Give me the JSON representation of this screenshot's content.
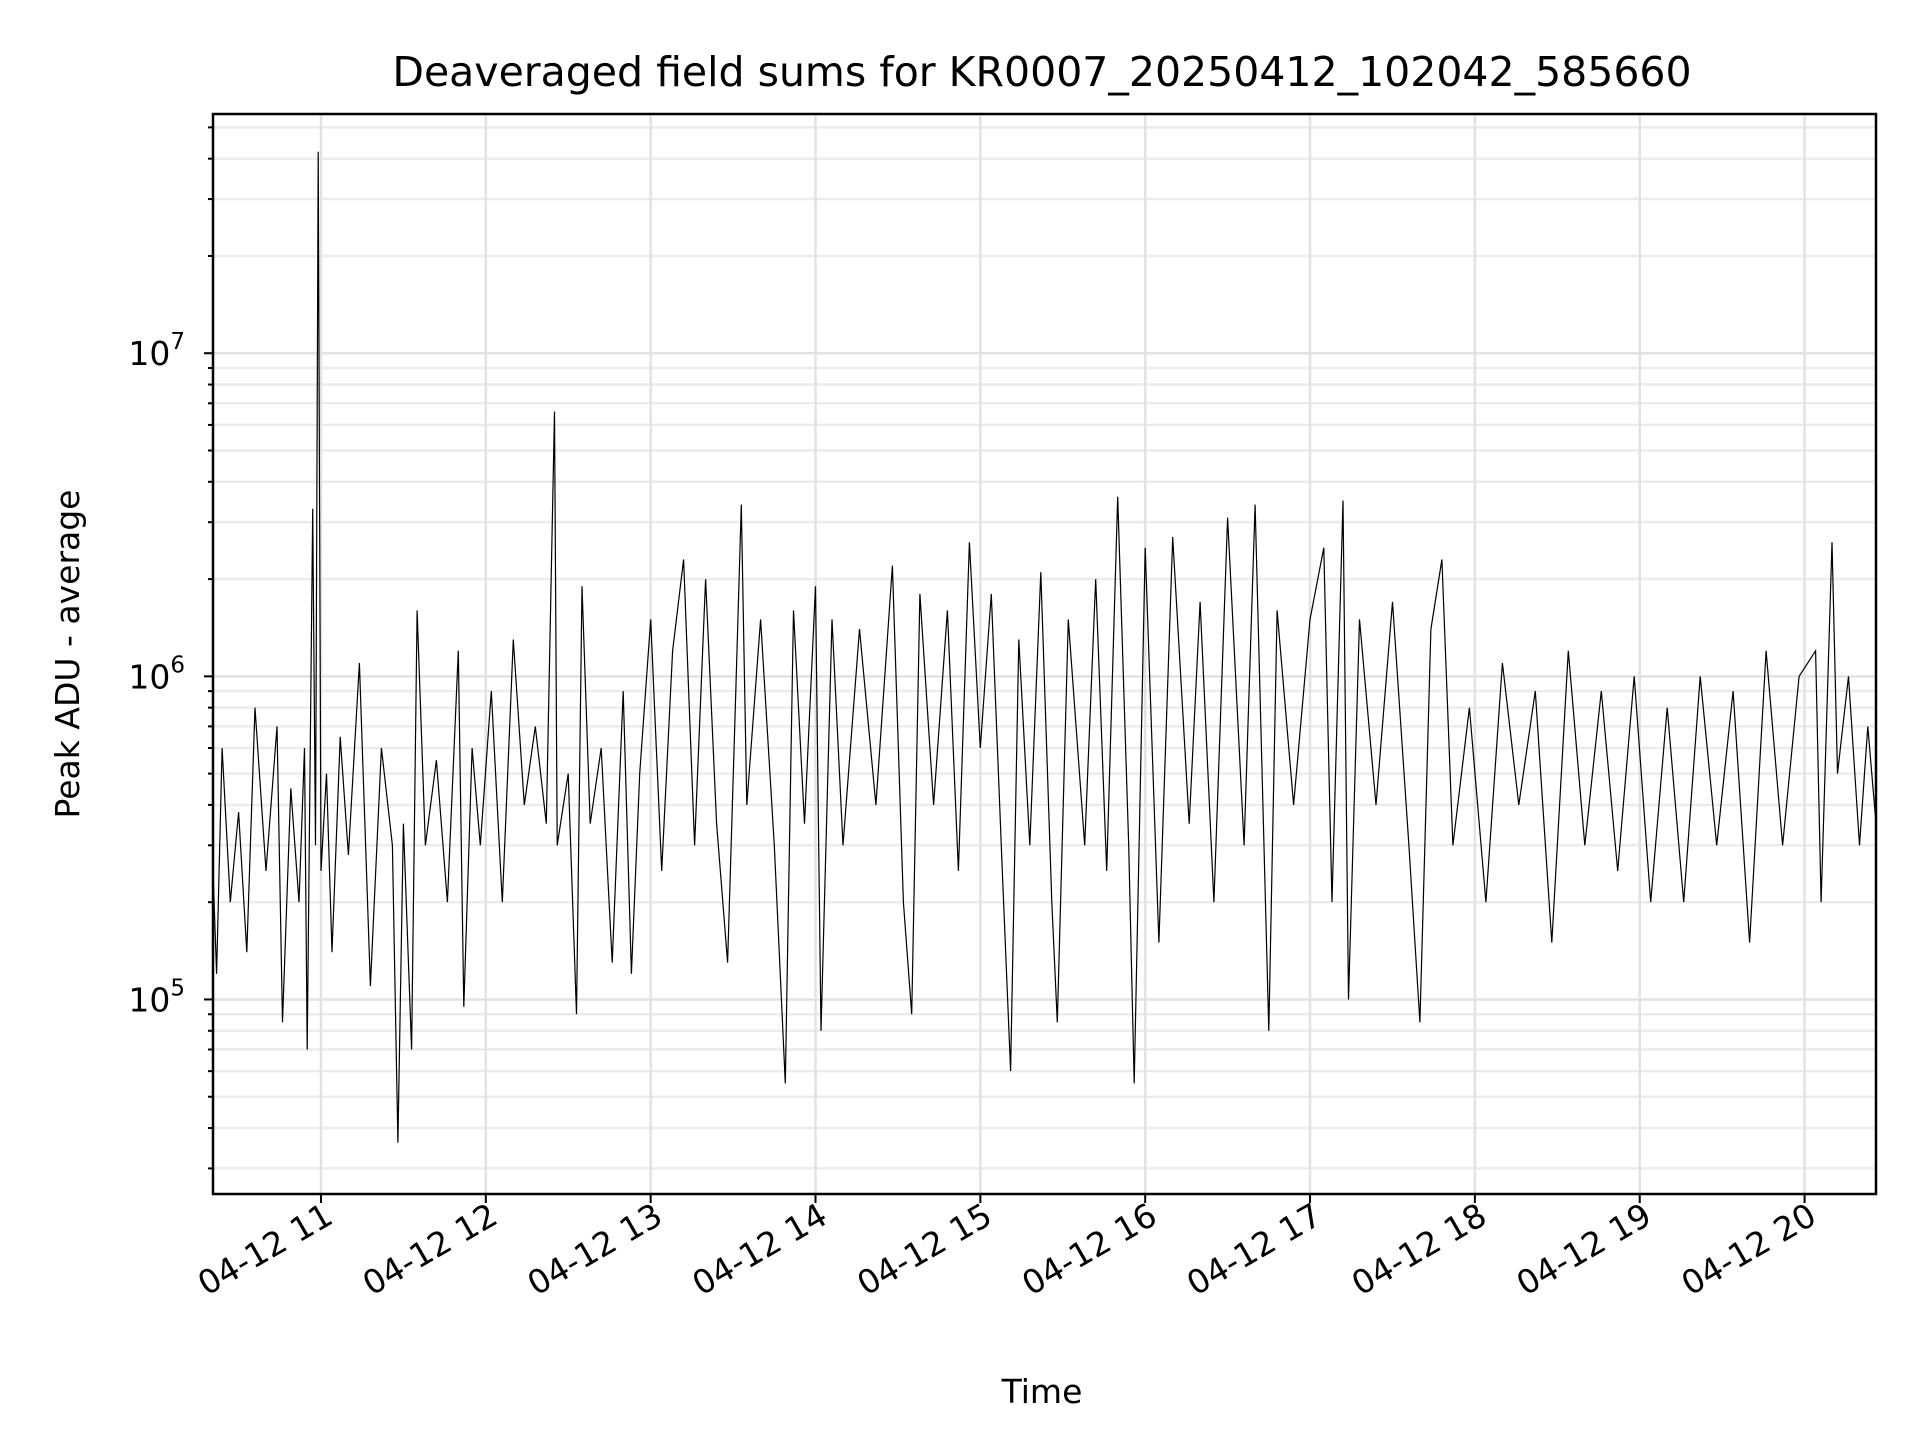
{
  "chart_data": {
    "type": "line",
    "title": "Deaveraged field sums for KR0007_20250412_102042_585660",
    "xlabel": "Time",
    "ylabel": "Peak ADU - average",
    "x_axis_type": "datetime",
    "xlim": [
      "2025-04-12 10:20:42",
      "2025-04-12 20:26:00"
    ],
    "y_scale": "log",
    "ylim": [
      25000,
      55000000
    ],
    "grid": true,
    "grid_minor": true,
    "legend": "none",
    "line_color": "#000000",
    "x_ticks": [
      "2025-04-12 11:00",
      "2025-04-12 12:00",
      "2025-04-12 13:00",
      "2025-04-12 14:00",
      "2025-04-12 15:00",
      "2025-04-12 16:00",
      "2025-04-12 17:00",
      "2025-04-12 18:00",
      "2025-04-12 19:00",
      "2025-04-12 20:00"
    ],
    "x_tick_labels": [
      "04-12 11",
      "04-12 12",
      "04-12 13",
      "04-12 14",
      "04-12 15",
      "04-12 16",
      "04-12 17",
      "04-12 18",
      "04-12 19",
      "04-12 20"
    ],
    "y_ticks": [
      100000,
      1000000,
      10000000
    ],
    "y_tick_labels": [
      {
        "base": "10",
        "exp": "5"
      },
      {
        "base": "10",
        "exp": "6"
      },
      {
        "base": "10",
        "exp": "7"
      }
    ],
    "series": [
      {
        "points": [
          [
            "2025-04-12 10:20:42",
            250000
          ],
          [
            "2025-04-12 10:22:00",
            120000
          ],
          [
            "2025-04-12 10:24:00",
            600000
          ],
          [
            "2025-04-12 10:27:00",
            200000
          ],
          [
            "2025-04-12 10:30:00",
            380000
          ],
          [
            "2025-04-12 10:33:00",
            140000
          ],
          [
            "2025-04-12 10:36:00",
            800000
          ],
          [
            "2025-04-12 10:40:00",
            250000
          ],
          [
            "2025-04-12 10:44:00",
            700000
          ],
          [
            "2025-04-12 10:46:00",
            85000
          ],
          [
            "2025-04-12 10:49:00",
            450000
          ],
          [
            "2025-04-12 10:52:00",
            200000
          ],
          [
            "2025-04-12 10:54:00",
            600000
          ],
          [
            "2025-04-12 10:55:00",
            70000
          ],
          [
            "2025-04-12 10:57:00",
            3300000
          ],
          [
            "2025-04-12 10:58:00",
            300000
          ],
          [
            "2025-04-12 10:59:00",
            42000000
          ],
          [
            "2025-04-12 11:00:00",
            250000
          ],
          [
            "2025-04-12 11:02:00",
            500000
          ],
          [
            "2025-04-12 11:04:00",
            140000
          ],
          [
            "2025-04-12 11:07:00",
            650000
          ],
          [
            "2025-04-12 11:10:00",
            280000
          ],
          [
            "2025-04-12 11:14:00",
            1100000
          ],
          [
            "2025-04-12 11:18:00",
            110000
          ],
          [
            "2025-04-12 11:22:00",
            600000
          ],
          [
            "2025-04-12 11:26:00",
            300000
          ],
          [
            "2025-04-12 11:28:00",
            36000
          ],
          [
            "2025-04-12 11:30:00",
            350000
          ],
          [
            "2025-04-12 11:33:00",
            70000
          ],
          [
            "2025-04-12 11:35:00",
            1600000
          ],
          [
            "2025-04-12 11:38:00",
            300000
          ],
          [
            "2025-04-12 11:42:00",
            550000
          ],
          [
            "2025-04-12 11:46:00",
            200000
          ],
          [
            "2025-04-12 11:50:00",
            1200000
          ],
          [
            "2025-04-12 11:52:00",
            95000
          ],
          [
            "2025-04-12 11:55:00",
            600000
          ],
          [
            "2025-04-12 11:58:00",
            300000
          ],
          [
            "2025-04-12 12:02:00",
            900000
          ],
          [
            "2025-04-12 12:06:00",
            200000
          ],
          [
            "2025-04-12 12:10:00",
            1300000
          ],
          [
            "2025-04-12 12:14:00",
            400000
          ],
          [
            "2025-04-12 12:18:00",
            700000
          ],
          [
            "2025-04-12 12:22:00",
            350000
          ],
          [
            "2025-04-12 12:25:00",
            6600000
          ],
          [
            "2025-04-12 12:26:00",
            300000
          ],
          [
            "2025-04-12 12:30:00",
            500000
          ],
          [
            "2025-04-12 12:33:00",
            90000
          ],
          [
            "2025-04-12 12:35:00",
            1900000
          ],
          [
            "2025-04-12 12:38:00",
            350000
          ],
          [
            "2025-04-12 12:42:00",
            600000
          ],
          [
            "2025-04-12 12:46:00",
            130000
          ],
          [
            "2025-04-12 12:50:00",
            900000
          ],
          [
            "2025-04-12 12:53:00",
            120000
          ],
          [
            "2025-04-12 12:56:00",
            500000
          ],
          [
            "2025-04-12 13:00:00",
            1500000
          ],
          [
            "2025-04-12 13:04:00",
            250000
          ],
          [
            "2025-04-12 13:08:00",
            1200000
          ],
          [
            "2025-04-12 13:12:00",
            2300000
          ],
          [
            "2025-04-12 13:16:00",
            300000
          ],
          [
            "2025-04-12 13:20:00",
            2000000
          ],
          [
            "2025-04-12 13:24:00",
            350000
          ],
          [
            "2025-04-12 13:28:00",
            130000
          ],
          [
            "2025-04-12 13:31:00",
            900000
          ],
          [
            "2025-04-12 13:33:00",
            3400000
          ],
          [
            "2025-04-12 13:35:00",
            400000
          ],
          [
            "2025-04-12 13:40:00",
            1500000
          ],
          [
            "2025-04-12 13:45:00",
            300000
          ],
          [
            "2025-04-12 13:49:00",
            55000
          ],
          [
            "2025-04-12 13:52:00",
            1600000
          ],
          [
            "2025-04-12 13:56:00",
            350000
          ],
          [
            "2025-04-12 14:00:00",
            1900000
          ],
          [
            "2025-04-12 14:02:00",
            80000
          ],
          [
            "2025-04-12 14:06:00",
            1500000
          ],
          [
            "2025-04-12 14:10:00",
            300000
          ],
          [
            "2025-04-12 14:16:00",
            1400000
          ],
          [
            "2025-04-12 14:22:00",
            400000
          ],
          [
            "2025-04-12 14:28:00",
            2200000
          ],
          [
            "2025-04-12 14:32:00",
            200000
          ],
          [
            "2025-04-12 14:35:00",
            90000
          ],
          [
            "2025-04-12 14:38:00",
            1800000
          ],
          [
            "2025-04-12 14:43:00",
            400000
          ],
          [
            "2025-04-12 14:48:00",
            1600000
          ],
          [
            "2025-04-12 14:52:00",
            250000
          ],
          [
            "2025-04-12 14:56:00",
            2600000
          ],
          [
            "2025-04-12 15:00:00",
            600000
          ],
          [
            "2025-04-12 15:04:00",
            1800000
          ],
          [
            "2025-04-12 15:08:00",
            250000
          ],
          [
            "2025-04-12 15:11:00",
            60000
          ],
          [
            "2025-04-12 15:14:00",
            1300000
          ],
          [
            "2025-04-12 15:18:00",
            300000
          ],
          [
            "2025-04-12 15:22:00",
            2100000
          ],
          [
            "2025-04-12 15:26:00",
            200000
          ],
          [
            "2025-04-12 15:28:00",
            85000
          ],
          [
            "2025-04-12 15:32:00",
            1500000
          ],
          [
            "2025-04-12 15:38:00",
            300000
          ],
          [
            "2025-04-12 15:42:00",
            2000000
          ],
          [
            "2025-04-12 15:46:00",
            250000
          ],
          [
            "2025-04-12 15:50:00",
            3600000
          ],
          [
            "2025-04-12 15:54:00",
            300000
          ],
          [
            "2025-04-12 15:56:00",
            55000
          ],
          [
            "2025-04-12 16:00:00",
            2500000
          ],
          [
            "2025-04-12 16:05:00",
            150000
          ],
          [
            "2025-04-12 16:10:00",
            2700000
          ],
          [
            "2025-04-12 16:16:00",
            350000
          ],
          [
            "2025-04-12 16:20:00",
            1700000
          ],
          [
            "2025-04-12 16:25:00",
            200000
          ],
          [
            "2025-04-12 16:30:00",
            3100000
          ],
          [
            "2025-04-12 16:36:00",
            300000
          ],
          [
            "2025-04-12 16:40:00",
            3400000
          ],
          [
            "2025-04-12 16:45:00",
            80000
          ],
          [
            "2025-04-12 16:48:00",
            1600000
          ],
          [
            "2025-04-12 16:54:00",
            400000
          ],
          [
            "2025-04-12 17:00:00",
            1500000
          ],
          [
            "2025-04-12 17:05:00",
            2500000
          ],
          [
            "2025-04-12 17:08:00",
            200000
          ],
          [
            "2025-04-12 17:12:00",
            3500000
          ],
          [
            "2025-04-12 17:14:00",
            100000
          ],
          [
            "2025-04-12 17:18:00",
            1500000
          ],
          [
            "2025-04-12 17:24:00",
            400000
          ],
          [
            "2025-04-12 17:30:00",
            1700000
          ],
          [
            "2025-04-12 17:36:00",
            300000
          ],
          [
            "2025-04-12 17:40:00",
            85000
          ],
          [
            "2025-04-12 17:44:00",
            1400000
          ],
          [
            "2025-04-12 17:48:00",
            2300000
          ],
          [
            "2025-04-12 17:52:00",
            300000
          ],
          [
            "2025-04-12 17:58:00",
            800000
          ],
          [
            "2025-04-12 18:04:00",
            200000
          ],
          [
            "2025-04-12 18:10:00",
            1100000
          ],
          [
            "2025-04-12 18:16:00",
            400000
          ],
          [
            "2025-04-12 18:22:00",
            900000
          ],
          [
            "2025-04-12 18:28:00",
            150000
          ],
          [
            "2025-04-12 18:34:00",
            1200000
          ],
          [
            "2025-04-12 18:40:00",
            300000
          ],
          [
            "2025-04-12 18:46:00",
            900000
          ],
          [
            "2025-04-12 18:52:00",
            250000
          ],
          [
            "2025-04-12 18:58:00",
            1000000
          ],
          [
            "2025-04-12 19:04:00",
            200000
          ],
          [
            "2025-04-12 19:10:00",
            800000
          ],
          [
            "2025-04-12 19:16:00",
            200000
          ],
          [
            "2025-04-12 19:22:00",
            1000000
          ],
          [
            "2025-04-12 19:28:00",
            300000
          ],
          [
            "2025-04-12 19:34:00",
            900000
          ],
          [
            "2025-04-12 19:40:00",
            150000
          ],
          [
            "2025-04-12 19:46:00",
            1200000
          ],
          [
            "2025-04-12 19:52:00",
            300000
          ],
          [
            "2025-04-12 19:58:00",
            1000000
          ],
          [
            "2025-04-12 20:04:00",
            1200000
          ],
          [
            "2025-04-12 20:06:00",
            200000
          ],
          [
            "2025-04-12 20:10:00",
            2600000
          ],
          [
            "2025-04-12 20:12:00",
            500000
          ],
          [
            "2025-04-12 20:16:00",
            1000000
          ],
          [
            "2025-04-12 20:20:00",
            300000
          ],
          [
            "2025-04-12 20:23:00",
            700000
          ],
          [
            "2025-04-12 20:26:00",
            350000
          ]
        ]
      }
    ]
  }
}
